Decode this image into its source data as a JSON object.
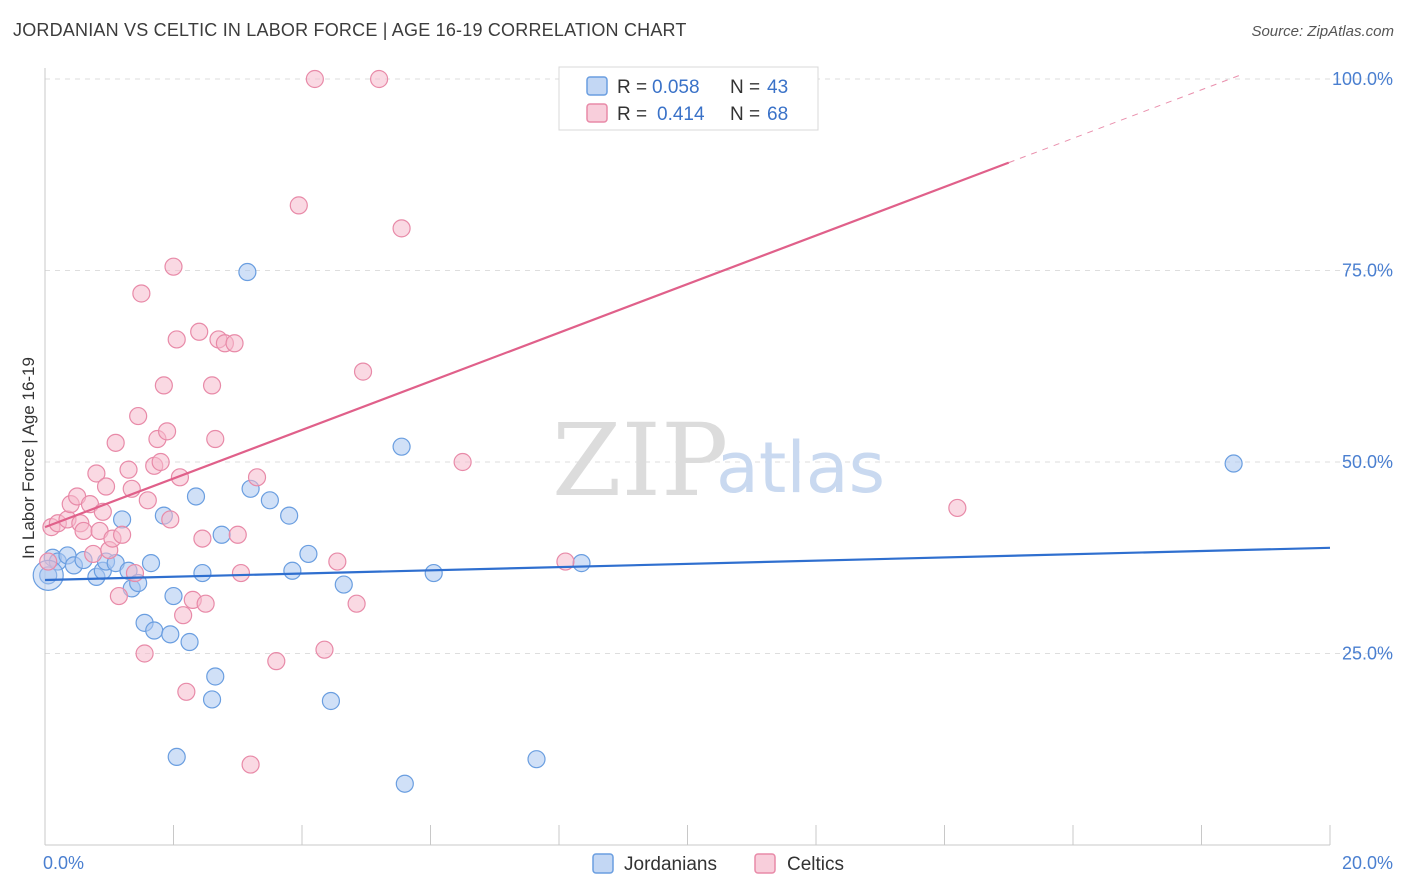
{
  "title": "JORDANIAN VS CELTIC IN LABOR FORCE | AGE 16-19 CORRELATION CHART",
  "source": "Source: ZipAtlas.com",
  "watermark": {
    "part1": "ZIP",
    "part2": "atlas"
  },
  "colors": {
    "jordanian_fill": "#a9c6f0",
    "jordanian_stroke": "#6a9ee0",
    "jordanian_line": "#2f6fcf",
    "celtic_fill": "#f5b9cc",
    "celtic_stroke": "#e88aa8",
    "celtic_line": "#e0608a",
    "tick_label": "#4a7fd0",
    "grid": "#dedede"
  },
  "legend": {
    "rows": [
      {
        "r_label": "R =",
        "r_value": "0.058",
        "n_label": "N =",
        "n_value": "43"
      },
      {
        "r_label": "R =",
        "r_value": "0.414",
        "n_label": "N =",
        "n_value": "68"
      }
    ]
  },
  "chart_data": {
    "type": "scatter",
    "title": "JORDANIAN VS CELTIC IN LABOR FORCE | AGE 16-19 CORRELATION CHART",
    "xlabel": "",
    "ylabel": "In Labor Force | Age 16-19",
    "xlim": [
      0,
      20
    ],
    "ylim": [
      0,
      105
    ],
    "x_tick_labels": [
      "0.0%",
      "20.0%"
    ],
    "y_ticks": [
      25,
      50,
      75,
      100
    ],
    "y_tick_labels": [
      "25.0%",
      "50.0%",
      "75.0%",
      "100.0%"
    ],
    "legend_bottom": [
      "Jordanians",
      "Celtics"
    ],
    "series": [
      {
        "name": "Jordanians",
        "R": 0.058,
        "N": 43,
        "trend": {
          "x": [
            0,
            20
          ],
          "y": [
            34.6,
            38.8
          ],
          "solid_until": 20
        },
        "points": [
          [
            0.05,
            35.2
          ],
          [
            0.12,
            37.5
          ],
          [
            0.2,
            37.0
          ],
          [
            0.35,
            37.8
          ],
          [
            0.45,
            36.5
          ],
          [
            0.6,
            37.2
          ],
          [
            0.8,
            35.0
          ],
          [
            0.9,
            35.8
          ],
          [
            0.95,
            37.0
          ],
          [
            1.1,
            36.8
          ],
          [
            1.2,
            42.5
          ],
          [
            1.3,
            35.8
          ],
          [
            1.35,
            33.5
          ],
          [
            1.45,
            34.2
          ],
          [
            1.55,
            29.0
          ],
          [
            1.65,
            36.8
          ],
          [
            1.7,
            28.0
          ],
          [
            1.85,
            43.0
          ],
          [
            1.95,
            27.5
          ],
          [
            2.0,
            32.5
          ],
          [
            2.05,
            11.5
          ],
          [
            2.25,
            26.5
          ],
          [
            2.35,
            45.5
          ],
          [
            2.45,
            35.5
          ],
          [
            2.6,
            19.0
          ],
          [
            2.65,
            22.0
          ],
          [
            2.75,
            40.5
          ],
          [
            3.15,
            74.8
          ],
          [
            3.2,
            46.5
          ],
          [
            3.5,
            45.0
          ],
          [
            3.8,
            43.0
          ],
          [
            3.85,
            35.8
          ],
          [
            4.1,
            38.0
          ],
          [
            4.45,
            18.8
          ],
          [
            4.65,
            34.0
          ],
          [
            5.55,
            52.0
          ],
          [
            5.6,
            8.0
          ],
          [
            6.05,
            35.5
          ],
          [
            7.65,
            11.2
          ],
          [
            8.35,
            36.8
          ],
          [
            18.5,
            49.8
          ]
        ]
      },
      {
        "name": "Celtics",
        "R": 0.414,
        "N": 68,
        "trend": {
          "x": [
            0,
            18.6
          ],
          "y": [
            41.5,
            100.5
          ],
          "solid_until": 15
        },
        "points": [
          [
            0.05,
            37.0
          ],
          [
            0.1,
            41.5
          ],
          [
            0.2,
            42.0
          ],
          [
            0.35,
            42.5
          ],
          [
            0.4,
            44.5
          ],
          [
            0.5,
            45.5
          ],
          [
            0.55,
            42.0
          ],
          [
            0.6,
            41.0
          ],
          [
            0.7,
            44.5
          ],
          [
            0.75,
            38.0
          ],
          [
            0.8,
            48.5
          ],
          [
            0.85,
            41.0
          ],
          [
            0.9,
            43.5
          ],
          [
            0.95,
            46.8
          ],
          [
            1.0,
            38.5
          ],
          [
            1.05,
            40.0
          ],
          [
            1.1,
            52.5
          ],
          [
            1.15,
            32.5
          ],
          [
            1.2,
            40.5
          ],
          [
            1.3,
            49.0
          ],
          [
            1.35,
            46.5
          ],
          [
            1.4,
            35.5
          ],
          [
            1.45,
            56.0
          ],
          [
            1.5,
            72.0
          ],
          [
            1.55,
            25.0
          ],
          [
            1.6,
            45.0
          ],
          [
            1.7,
            49.5
          ],
          [
            1.75,
            53.0
          ],
          [
            1.8,
            50.0
          ],
          [
            1.85,
            60.0
          ],
          [
            1.9,
            54.0
          ],
          [
            1.95,
            42.5
          ],
          [
            2.0,
            75.5
          ],
          [
            2.05,
            66.0
          ],
          [
            2.1,
            48.0
          ],
          [
            2.15,
            30.0
          ],
          [
            2.2,
            20.0
          ],
          [
            2.3,
            32.0
          ],
          [
            2.4,
            67.0
          ],
          [
            2.45,
            40.0
          ],
          [
            2.5,
            31.5
          ],
          [
            2.6,
            60.0
          ],
          [
            2.65,
            53.0
          ],
          [
            2.7,
            66.0
          ],
          [
            2.8,
            65.5
          ],
          [
            2.95,
            65.5
          ],
          [
            3.0,
            40.5
          ],
          [
            3.05,
            35.5
          ],
          [
            3.2,
            10.5
          ],
          [
            3.3,
            48.0
          ],
          [
            3.6,
            24.0
          ],
          [
            3.95,
            83.5
          ],
          [
            4.2,
            100.0
          ],
          [
            4.35,
            25.5
          ],
          [
            4.55,
            37.0
          ],
          [
            4.85,
            31.5
          ],
          [
            4.95,
            61.8
          ],
          [
            5.2,
            100.0
          ],
          [
            5.55,
            80.5
          ],
          [
            6.5,
            50.0
          ],
          [
            8.1,
            37.0
          ],
          [
            14.2,
            44.0
          ]
        ]
      }
    ]
  }
}
